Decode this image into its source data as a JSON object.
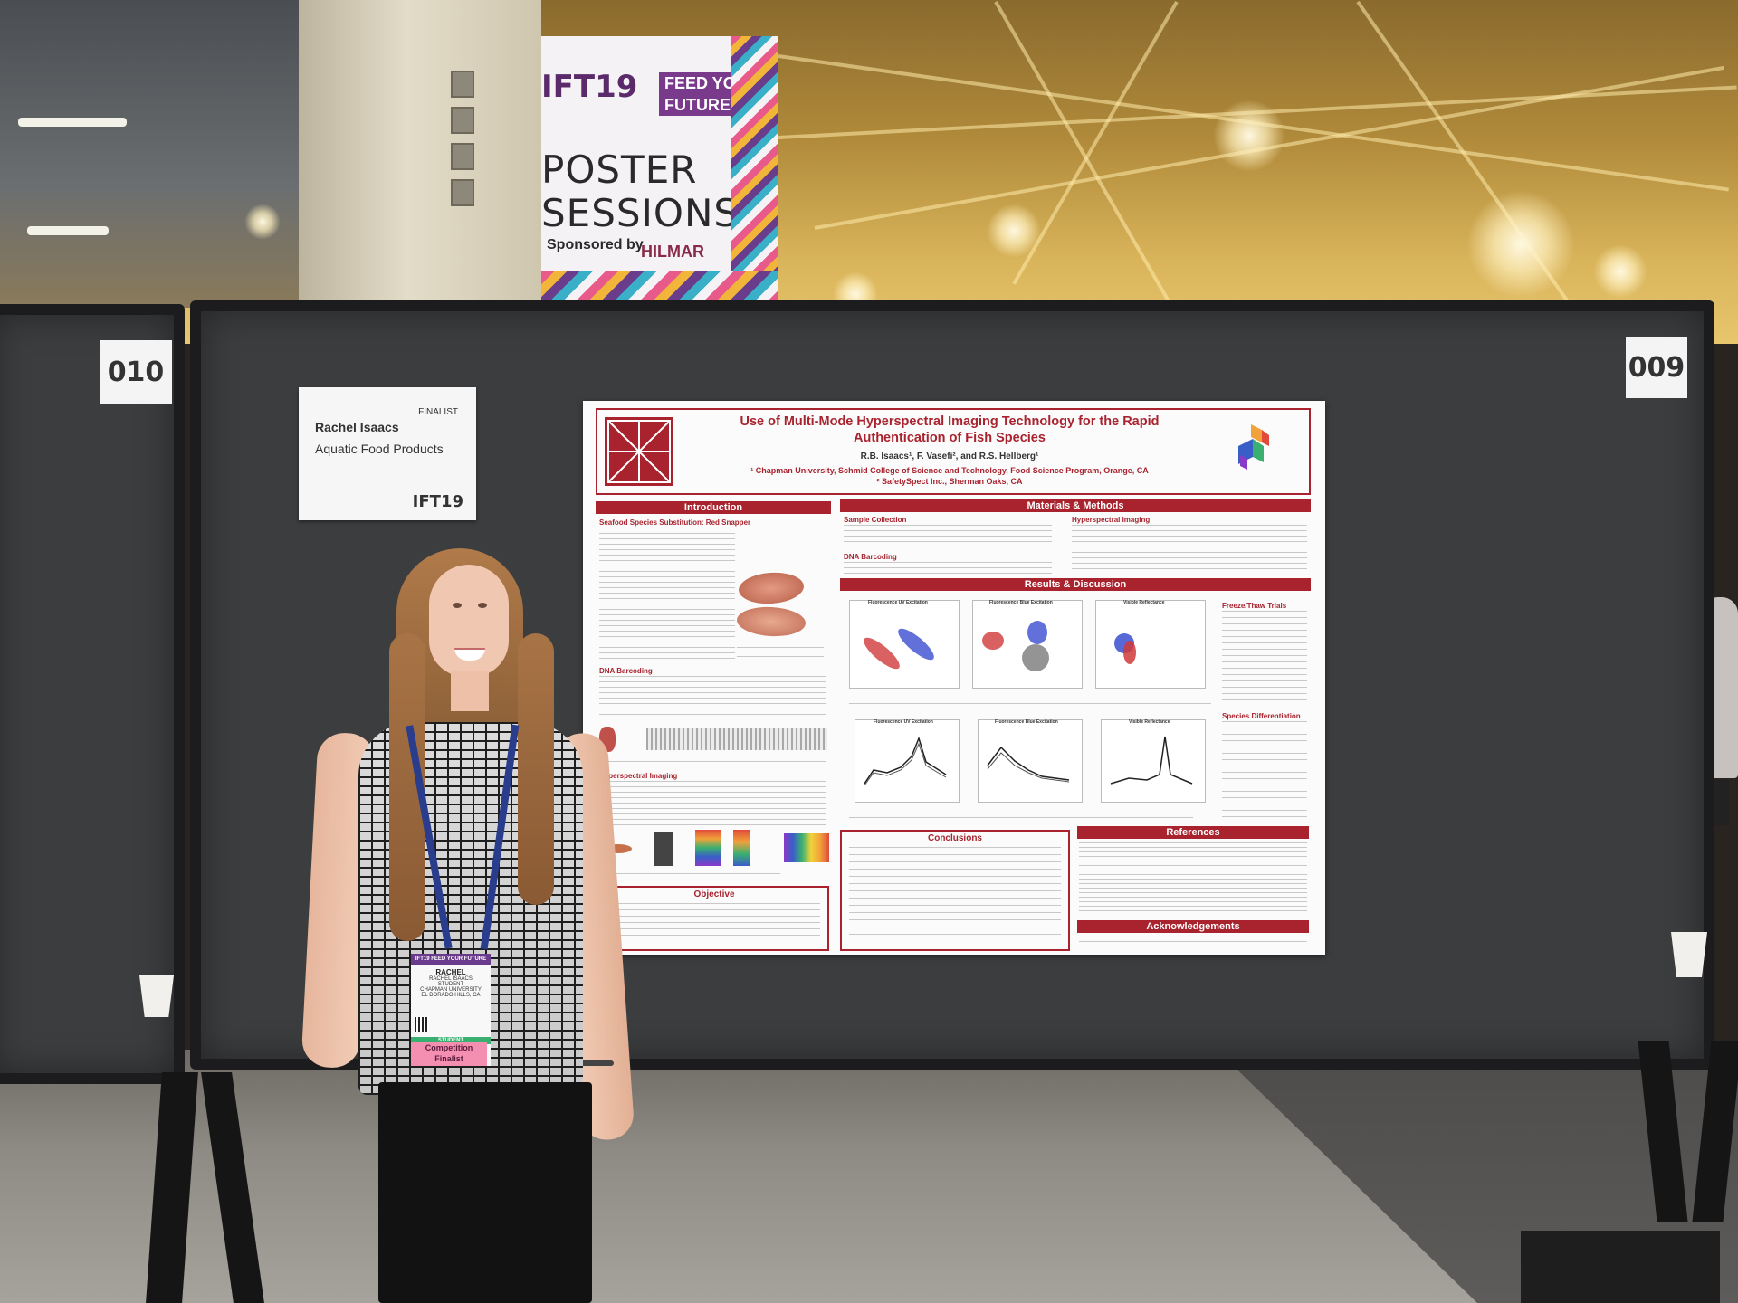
{
  "banner": {
    "ift": "IFT19",
    "tag_line1": "FEED YOUR",
    "tag_line2": "FUTURE",
    "title_line1": "POSTER",
    "title_line2": "SESSIONS",
    "sponsored_by": "Sponsored by",
    "sponsor": "HILMAR"
  },
  "board_numbers": {
    "left": "010",
    "right": "009"
  },
  "card": {
    "finalist": "FINALIST",
    "name": "Rachel Isaacs",
    "category": "Aquatic Food Products",
    "logo": "IFT19"
  },
  "poster": {
    "title_line1": "Use of Multi-Mode Hyperspectral Imaging Technology for the Rapid",
    "title_line2": "Authentication of Fish Species",
    "authors": "R.B. Isaacs¹, F. Vasefi², and R.S. Hellberg¹",
    "affil1": "¹ Chapman University, Schmid College of Science and Technology, Food Science Program, Orange, CA",
    "affil2": "² SafetySpect Inc., Sherman Oaks, CA",
    "headers": {
      "introduction": "Introduction",
      "materials": "Materials & Methods",
      "results": "Results & Discussion",
      "objective": "Objective",
      "conclusions": "Conclusions",
      "references": "References",
      "acknowledgements": "Acknowledgements"
    },
    "subheads": {
      "seafood": "Seafood Species Substitution: Red Snapper",
      "dna_intro": "DNA Barcoding",
      "hsi": "Hyperspectral Imaging",
      "sample": "Sample Collection",
      "dna_methods": "DNA Barcoding",
      "hsi_methods": "Hyperspectral Imaging",
      "freeze": "Freeze/Thaw Trials",
      "species": "Species Differentiation"
    },
    "plot_titles": {
      "uv": "Fluorescence UV Excitation",
      "blue": "Fluorescence Blue Excitation",
      "visible": "Visible Reflectance"
    }
  },
  "badge": {
    "header": "IFT19 FEED YOUR FUTURE",
    "first": "RACHEL",
    "full": "RACHEL ISAACS",
    "role": "STUDENT",
    "org": "CHAPMAN UNIVERSITY",
    "city": "EL DORADO HILLS, CA",
    "type": "STUDENT",
    "ribbon1": "Competition",
    "ribbon2": "Finalist"
  },
  "colors": {
    "poster_red": "#a8232e",
    "banner_purple": "#7a3a8c",
    "board": "#3b3d3f",
    "lanyard": "#2a3c8c",
    "ribbon_pink": "#f48fb1"
  }
}
